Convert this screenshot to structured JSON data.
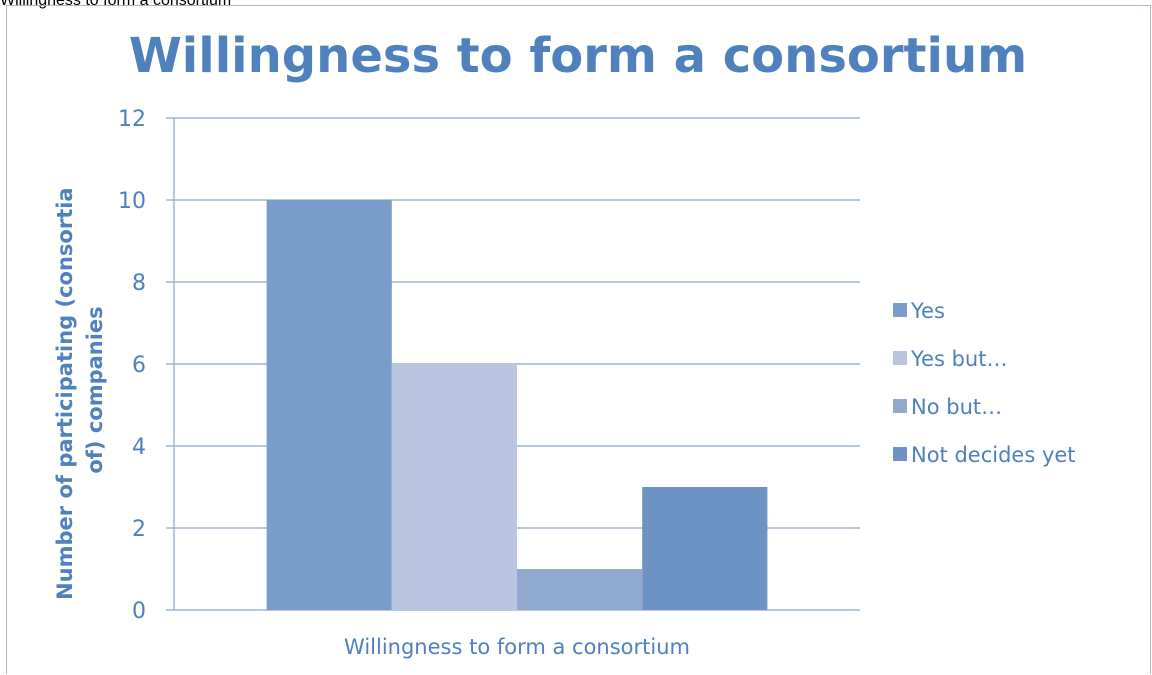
{
  "page": {
    "caption": "Willingness to form a consortium"
  },
  "chart_data": {
    "type": "bar",
    "title": "Willingness to form a consortium",
    "xlabel": "",
    "ylabel": "Number of participating (consortia of) companies",
    "ylabel_lines": [
      "Number of participating (consortia",
      "of) companies"
    ],
    "categories": [
      "Willingness to form a consortium"
    ],
    "series": [
      {
        "name": "Yes",
        "values": [
          10
        ],
        "color": "#7a9cc8"
      },
      {
        "name": "Yes but…",
        "values": [
          6
        ],
        "color": "#bac6df"
      },
      {
        "name": "No but…",
        "values": [
          1
        ],
        "color": "#91a9cf"
      },
      {
        "name": "Not decides yet",
        "values": [
          3
        ],
        "color": "#6d93c5"
      }
    ],
    "ylim": [
      0,
      12
    ],
    "yticks": [
      0,
      2,
      4,
      6,
      8,
      10,
      12
    ],
    "grid": true,
    "legend_position": "right",
    "colors": {
      "text": "#4f81bd",
      "grid": "#88a8d0",
      "axis": "#88a8d0"
    }
  }
}
